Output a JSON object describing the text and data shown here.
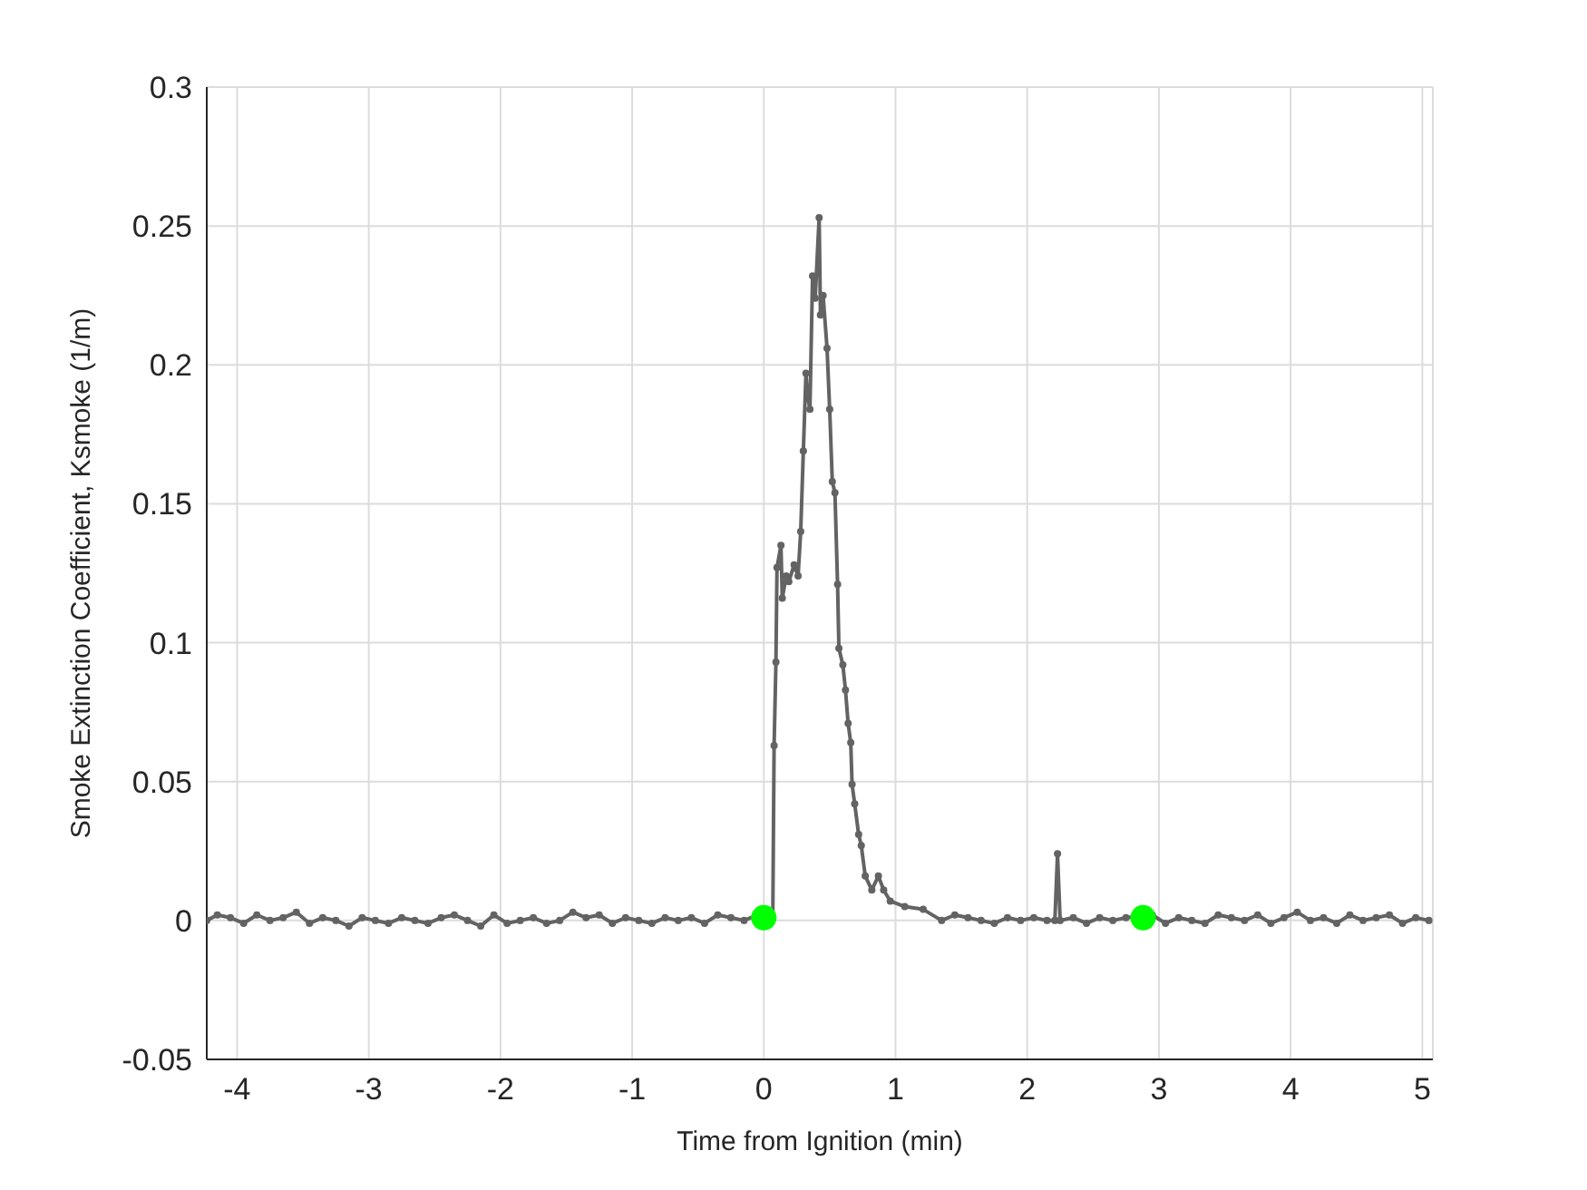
{
  "chart_data": {
    "type": "line",
    "xlabel": "Time from Ignition (min)",
    "ylabel": "Smoke Extinction Coefficient, Ksmoke (1/m)",
    "xlim": [
      -4.23,
      5.08
    ],
    "ylim": [
      -0.05,
      0.3
    ],
    "xticks": [
      -4,
      -3,
      -2,
      -1,
      0,
      1,
      2,
      3,
      4,
      5
    ],
    "yticks": [
      -0.05,
      0,
      0.05,
      0.1,
      0.15,
      0.2,
      0.25,
      0.3
    ],
    "grid": true,
    "marker": "circle",
    "line_style": "solid",
    "legend": false,
    "series": [
      {
        "color": "#636363",
        "x": [
          -4.23,
          -4.15,
          -4.05,
          -3.95,
          -3.85,
          -3.75,
          -3.65,
          -3.55,
          -3.45,
          -3.35,
          -3.25,
          -3.15,
          -3.05,
          -2.95,
          -2.85,
          -2.75,
          -2.65,
          -2.55,
          -2.45,
          -2.35,
          -2.25,
          -2.15,
          -2.05,
          -1.95,
          -1.85,
          -1.75,
          -1.65,
          -1.55,
          -1.45,
          -1.35,
          -1.25,
          -1.15,
          -1.05,
          -0.95,
          -0.85,
          -0.75,
          -0.65,
          -0.55,
          -0.45,
          -0.35,
          -0.25,
          -0.15,
          -0.05,
          0.068,
          0.078,
          0.092,
          0.1,
          0.13,
          0.14,
          0.17,
          0.19,
          0.23,
          0.26,
          0.28,
          0.3,
          0.32,
          0.33,
          0.35,
          0.37,
          0.39,
          0.42,
          0.43,
          0.45,
          0.48,
          0.5,
          0.52,
          0.54,
          0.56,
          0.57,
          0.6,
          0.62,
          0.64,
          0.66,
          0.67,
          0.69,
          0.72,
          0.74,
          0.77,
          0.82,
          0.87,
          0.91,
          0.96,
          1.07,
          1.21,
          1.35,
          1.45,
          1.55,
          1.65,
          1.75,
          1.85,
          1.95,
          2.05,
          2.15,
          2.21,
          2.23,
          2.25,
          2.35,
          2.45,
          2.55,
          2.65,
          2.75,
          2.95,
          3.05,
          3.15,
          3.25,
          3.35,
          3.45,
          3.55,
          3.65,
          3.75,
          3.85,
          3.95,
          4.05,
          4.15,
          4.25,
          4.35,
          4.45,
          4.55,
          4.65,
          4.75,
          4.85,
          4.95,
          5.05
        ],
        "values": [
          0,
          0.002,
          0.001,
          -0.001,
          0.002,
          0,
          0.001,
          0.003,
          -0.001,
          0.001,
          0,
          -0.002,
          0.001,
          0,
          -0.001,
          0.001,
          0,
          -0.001,
          0.001,
          0.002,
          0,
          -0.002,
          0.002,
          -0.001,
          0,
          0.001,
          -0.001,
          0,
          0.003,
          0.001,
          0.002,
          -0.001,
          0.001,
          0,
          -0.001,
          0.001,
          0,
          0.001,
          -0.001,
          0.002,
          0.001,
          0,
          0.002,
          0.001,
          0.063,
          0.093,
          0.127,
          0.135,
          0.116,
          0.124,
          0.122,
          0.128,
          0.124,
          0.14,
          0.169,
          0.197,
          0.19,
          0.184,
          0.232,
          0.224,
          0.253,
          0.218,
          0.225,
          0.206,
          0.184,
          0.158,
          0.154,
          0.121,
          0.098,
          0.092,
          0.083,
          0.071,
          0.064,
          0.049,
          0.042,
          0.031,
          0.027,
          0.016,
          0.011,
          0.016,
          0.011,
          0.007,
          0.005,
          0.004,
          0,
          0.002,
          0.001,
          0,
          -0.001,
          0.001,
          0,
          0.001,
          0,
          0,
          0.024,
          0,
          0.001,
          -0.001,
          0.001,
          0,
          0.001,
          0.002,
          -0.001,
          0.001,
          0,
          -0.001,
          0.002,
          0.001,
          0,
          0.002,
          -0.001,
          0.001,
          0.003,
          0,
          0.001,
          -0.001,
          0.002,
          0,
          0.001,
          0.002,
          -0.001,
          0.001,
          0
        ]
      },
      {
        "type": "scatter",
        "color": "#00ff00",
        "x": [
          0,
          2.88
        ],
        "values": [
          0.001,
          0.001
        ]
      }
    ]
  }
}
